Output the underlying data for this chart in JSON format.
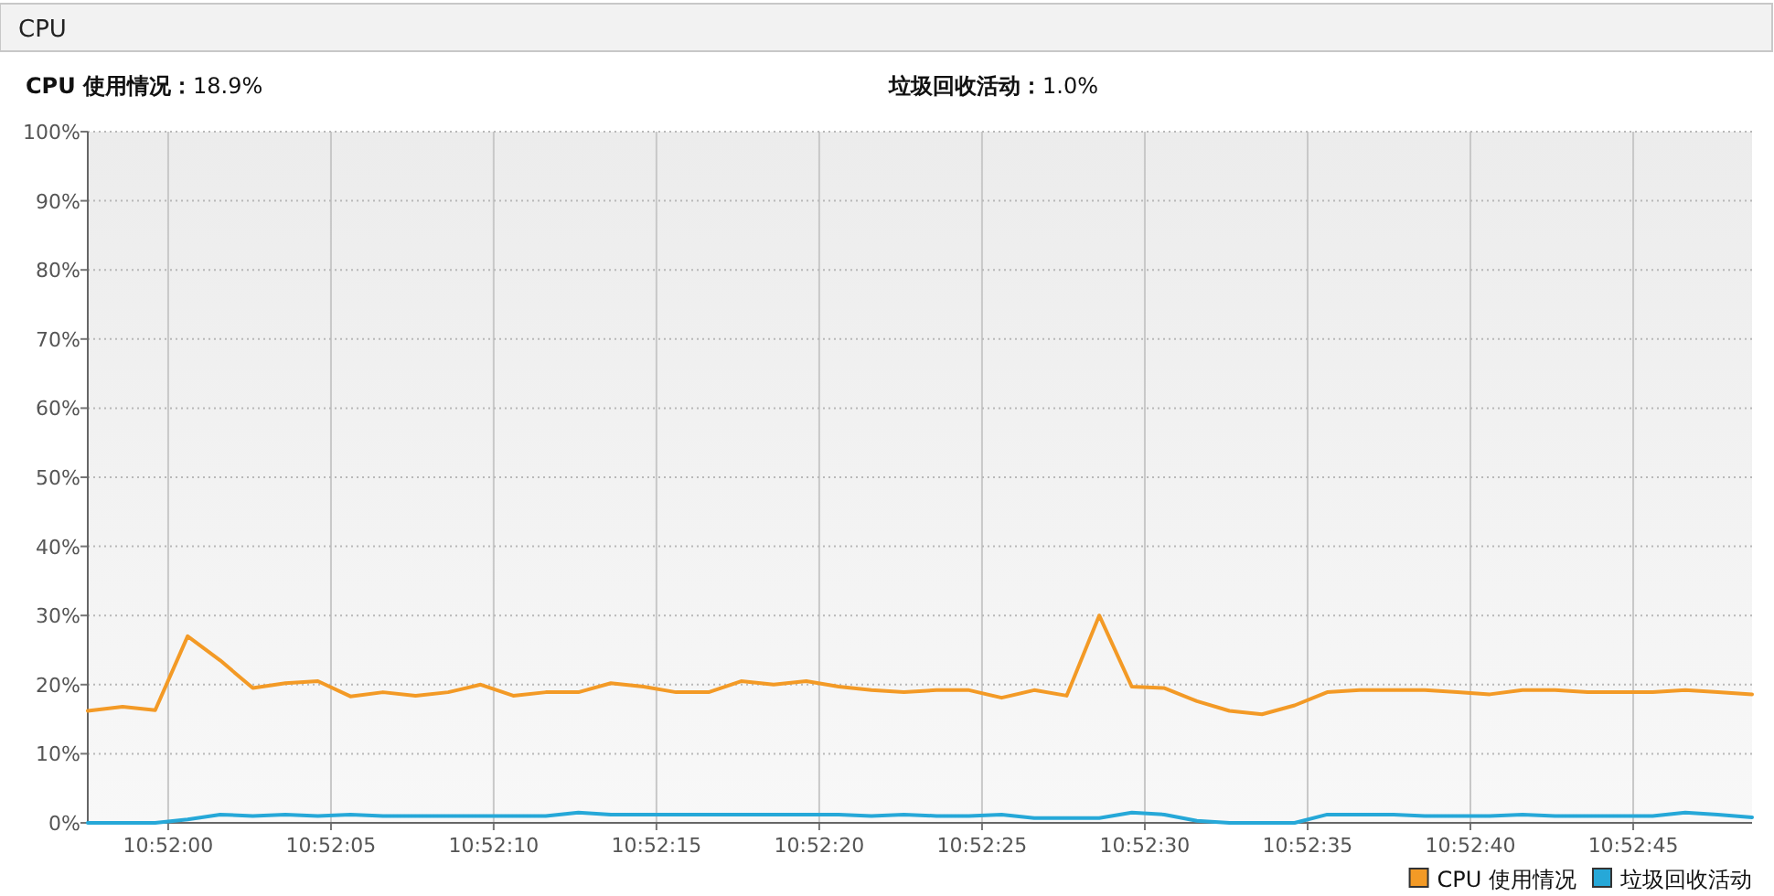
{
  "chart_data": {
    "type": "line",
    "title": "CPU",
    "annotations": [
      "**CPU 使用情况：**18.9%",
      "**垃圾回收活动：**1.0%"
    ],
    "x": [
      10.865981,
      10.866278,
      10.866556,
      10.866833,
      10.867111,
      10.867389,
      10.867667,
      10.867944,
      10.868222,
      10.8685,
      10.868778,
      10.869056,
      10.869333,
      10.869611,
      10.869889,
      10.870167,
      10.870444,
      10.870722,
      10.871,
      10.871278,
      10.871556,
      10.871833,
      10.872111,
      10.872389,
      10.872667,
      10.872944,
      10.873222,
      10.8735,
      10.873778,
      10.874056,
      10.874333,
      10.874611,
      10.874889,
      10.875167,
      10.875444,
      10.875722,
      10.876,
      10.876278,
      10.876556,
      10.876833,
      10.877111,
      10.877389,
      10.877667,
      10.877944,
      10.878222,
      10.8785,
      10.878778,
      10.879056,
      10.879333,
      10.879611,
      10.879889,
      10.880181
    ],
    "series": [
      {
        "name": "CPU 使用情况",
        "color": "#f39a26",
        "values": [
          16.2,
          16.8,
          16.3,
          27,
          23.5,
          19.5,
          20.2,
          20.5,
          18.3,
          18.9,
          18.4,
          18.9,
          20,
          18.4,
          18.9,
          18.9,
          20.2,
          19.7,
          18.9,
          18.9,
          20.5,
          20,
          20.5,
          19.7,
          19.2,
          18.9,
          19.2,
          19.2,
          18.1,
          19.2,
          18.4,
          30,
          19.7,
          19.5,
          17.6,
          16.2,
          15.7,
          17,
          18.9,
          19.2,
          19.2,
          19.2,
          18.9,
          18.6,
          19.2,
          19.2,
          18.9,
          18.9,
          18.9,
          19.2,
          18.9,
          18.6
        ]
      },
      {
        "name": "垃圾回收活动",
        "color": "#26a8d8",
        "values": [
          0,
          0,
          0,
          0.5,
          1.2,
          1.0,
          1.2,
          1.0,
          1.2,
          1.0,
          1.0,
          1.0,
          1.0,
          1.0,
          1.0,
          1.5,
          1.2,
          1.2,
          1.2,
          1.2,
          1.2,
          1.2,
          1.2,
          1.2,
          1.0,
          1.2,
          1.0,
          1.0,
          1.2,
          0.7,
          0.7,
          0.7,
          1.5,
          1.2,
          0.3,
          0,
          0,
          0,
          1.2,
          1.2,
          1.2,
          1.0,
          1.0,
          1.0,
          1.2,
          1.0,
          1.0,
          1.0,
          1.0,
          1.5,
          1.2,
          0.8
        ]
      }
    ],
    "xlim": [
      10.865981,
      10.880181
    ],
    "xticks": [
      {
        "value": 10.866667,
        "label": "10:52:00"
      },
      {
        "value": 10.868056,
        "label": "10:52:05"
      },
      {
        "value": 10.869444,
        "label": "10:52:10"
      },
      {
        "value": 10.870833,
        "label": "10:52:15"
      },
      {
        "value": 10.872222,
        "label": "10:52:20"
      },
      {
        "value": 10.873611,
        "label": "10:52:25"
      },
      {
        "value": 10.875,
        "label": "10:52:30"
      },
      {
        "value": 10.876389,
        "label": "10:52:35"
      },
      {
        "value": 10.877778,
        "label": "10:52:40"
      },
      {
        "value": 10.879167,
        "label": "10:52:45"
      }
    ],
    "ylim": [
      0,
      100
    ],
    "yticks": [
      {
        "value": 0,
        "label": "0%"
      },
      {
        "value": 10,
        "label": "10%"
      },
      {
        "value": 20,
        "label": "20%"
      },
      {
        "value": 30,
        "label": "30%"
      },
      {
        "value": 40,
        "label": "40%"
      },
      {
        "value": 50,
        "label": "50%"
      },
      {
        "value": 60,
        "label": "60%"
      },
      {
        "value": 70,
        "label": "70%"
      },
      {
        "value": 80,
        "label": "80%"
      },
      {
        "value": 90,
        "label": "90%"
      },
      {
        "value": 100,
        "label": "100%"
      }
    ],
    "grid": true,
    "legend": "bottom right",
    "marker": "none",
    "line_style": "solid"
  }
}
